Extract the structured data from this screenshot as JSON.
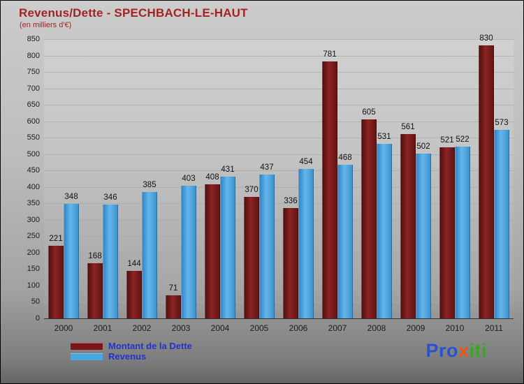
{
  "title": "Revenus/Dette - SPECHBACH-LE-HAUT",
  "subtitle": "(en milliers d'€)",
  "legend": [
    {
      "label": "Montant de la Dette",
      "color": "#7a1616"
    },
    {
      "label": "Revenus",
      "color": "#4aa8e0"
    }
  ],
  "logo": {
    "pro": "Pro",
    "x": "x",
    "iti": "iti"
  },
  "chart_data": {
    "type": "bar",
    "title": "Revenus/Dette - SPECHBACH-LE-HAUT",
    "subtitle": "(en milliers d'€)",
    "categories": [
      "2000",
      "2001",
      "2002",
      "2003",
      "2004",
      "2005",
      "2006",
      "2007",
      "2008",
      "2009",
      "2010",
      "2011"
    ],
    "series": [
      {
        "name": "Montant de la Dette",
        "color": "#7a1616",
        "values": [
          221,
          168,
          144,
          71,
          408,
          370,
          336,
          781,
          605,
          561,
          521,
          830
        ]
      },
      {
        "name": "Revenus",
        "color": "#4aa8e0",
        "values": [
          348,
          346,
          385,
          403,
          431,
          437,
          454,
          468,
          531,
          502,
          522,
          573
        ]
      }
    ],
    "xlabel": "",
    "ylabel": "(en milliers d'€)",
    "ylim": [
      0,
      850
    ],
    "ytick_step": 50,
    "grid": true,
    "legend_position": "bottom-left"
  }
}
